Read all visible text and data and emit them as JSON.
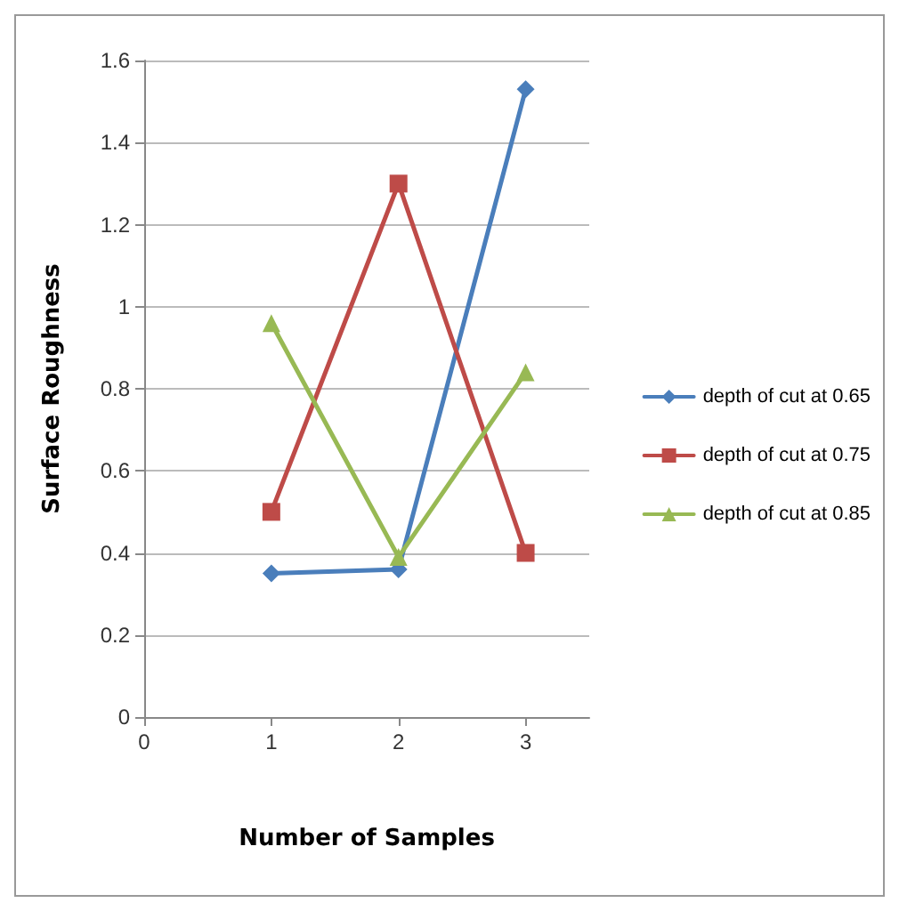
{
  "chart_data": {
    "type": "line",
    "xlabel": "Number of Samples",
    "ylabel": "Surface Roughness",
    "x": [
      1,
      2,
      3
    ],
    "xlim": [
      0,
      3.5
    ],
    "xticks": [
      0,
      1,
      2,
      3
    ],
    "ylim": [
      0,
      1.6
    ],
    "yticks": [
      0,
      0.2,
      0.4,
      0.6,
      0.8,
      1,
      1.2,
      1.4,
      1.6
    ],
    "grid": "y",
    "legend": "right",
    "series": [
      {
        "name": "depth of cut at 0.65",
        "color": "#4a7ebb",
        "marker": "diamond",
        "values": [
          0.35,
          0.36,
          1.53
        ]
      },
      {
        "name": "depth of cut at 0.75",
        "color": "#be4b48",
        "marker": "square",
        "values": [
          0.5,
          1.3,
          0.4
        ]
      },
      {
        "name": "depth of cut at 0.85",
        "color": "#98b954",
        "marker": "triangle",
        "values": [
          0.96,
          0.39,
          0.84
        ]
      }
    ]
  }
}
